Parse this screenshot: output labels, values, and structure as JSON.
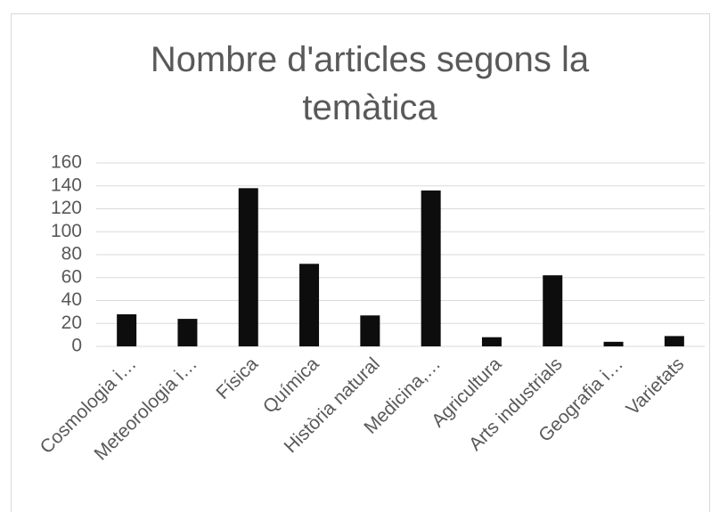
{
  "chart_data": {
    "type": "bar",
    "title": "Nombre d'articles segons la temàtica",
    "categories": [
      "Cosmologia i…",
      "Meteorologia i…",
      "Física",
      "Química",
      "Història natural",
      "Medicina,…",
      "Agricultura",
      "Arts industrials",
      "Geografia i…",
      "Varietats"
    ],
    "values": [
      28,
      24,
      138,
      72,
      27,
      136,
      8,
      62,
      4,
      9
    ],
    "color": "#0d0d0d",
    "ylim": [
      0,
      160
    ],
    "yticks": [
      0,
      20,
      40,
      60,
      80,
      100,
      120,
      140,
      160
    ],
    "grid": true
  }
}
